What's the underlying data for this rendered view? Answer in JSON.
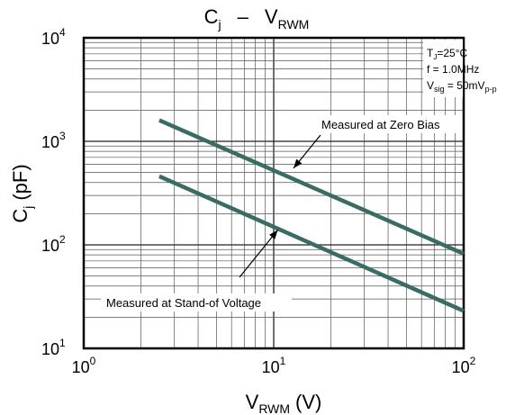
{
  "chart_data": {
    "type": "line",
    "title": {
      "main": "C",
      "main_sub": "j",
      "dash": "–",
      "x_main": "V",
      "x_sub": "RWM"
    },
    "xlabel": {
      "main": "V",
      "sub": "RWM",
      "unit": "(V)"
    },
    "ylabel": {
      "main": "C",
      "sub": "j",
      "unit": "(pF)"
    },
    "x_scale": "log",
    "y_scale": "log",
    "xlim": [
      1,
      100
    ],
    "ylim": [
      10,
      10000
    ],
    "grid": true,
    "x_ticks": [
      {
        "value": 1,
        "base": "10",
        "exp": "0"
      },
      {
        "value": 10,
        "base": "10",
        "exp": "1"
      },
      {
        "value": 100,
        "base": "10",
        "exp": "2"
      }
    ],
    "y_ticks": [
      {
        "value": 10,
        "base": "10",
        "exp": "1"
      },
      {
        "value": 100,
        "base": "10",
        "exp": "2"
      },
      {
        "value": 1000,
        "base": "10",
        "exp": "3"
      },
      {
        "value": 10000,
        "base": "10",
        "exp": "4"
      }
    ],
    "series": [
      {
        "x": [
          2.5,
          100
        ],
        "y": [
          1600,
          82
        ]
      },
      {
        "x": [
          2.5,
          100
        ],
        "y": [
          460,
          23
        ]
      }
    ],
    "annotations": [
      {
        "text": "Measured at Zero Bias",
        "arrow_to": [
          10,
          620
        ]
      },
      {
        "text": "Measured at Stand-of Voltage",
        "arrow_to": [
          10.5,
          170
        ]
      }
    ],
    "conditions": {
      "line1": {
        "p1": "T",
        "s1": "J",
        "p2": "=25°C"
      },
      "line2": {
        "p1": "f = 1.0MHz"
      },
      "line3": {
        "p1": "V",
        "s1": "sig",
        "p2": " = 50mV",
        "s2": "p-p"
      }
    },
    "colors": {
      "series": "#3a6b65",
      "grid": "#555555",
      "axis": "#000000"
    }
  }
}
